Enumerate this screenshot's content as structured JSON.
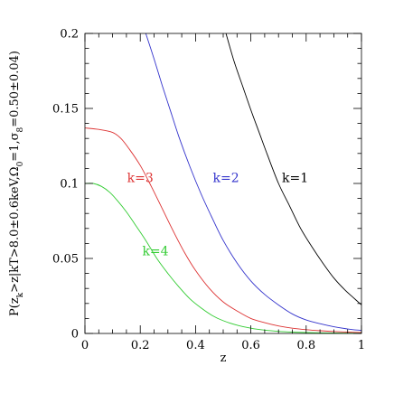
{
  "chart_data": {
    "type": "line",
    "title": "",
    "xlabel": "z",
    "ylabel": "P(z_k>z|kT>8.0±0.6keV,Ω_0=1,σ_8=0.50±0.04)",
    "ylabel_parts": {
      "p1": "P(z",
      "s1": "k",
      "p2": ">z|kT>8.0±0.6keV,Ω",
      "s2": "0",
      "p3": "=1,σ",
      "s3": "8",
      "p4": "=0.50±0.04)"
    },
    "xlim": [
      0,
      1
    ],
    "ylim": [
      0,
      0.2
    ],
    "xticks": [
      0,
      0.2,
      0.4,
      0.6,
      0.8,
      1
    ],
    "xtick_labels": [
      "0",
      "0.2",
      "0.4",
      "0.6",
      "0.8",
      "1"
    ],
    "yticks": [
      0,
      0.05,
      0.1,
      0.15,
      0.2
    ],
    "ytick_labels": [
      "0",
      "0.05",
      "0.1",
      "0.15",
      "0.2"
    ],
    "grid": false,
    "series": [
      {
        "name": "k=1",
        "color": "#000000",
        "x": [
          0.51,
          0.54,
          0.57,
          0.6,
          0.63,
          0.66,
          0.7,
          0.74,
          0.78,
          0.82,
          0.86,
          0.9,
          0.94,
          0.97,
          1.0
        ],
        "y": [
          0.2,
          0.181,
          0.165,
          0.149,
          0.134,
          0.119,
          0.1,
          0.085,
          0.07,
          0.058,
          0.047,
          0.037,
          0.029,
          0.024,
          0.019
        ]
      },
      {
        "name": "k=2",
        "color": "#3333cc",
        "x": [
          0.22,
          0.25,
          0.28,
          0.31,
          0.34,
          0.38,
          0.42,
          0.46,
          0.5,
          0.55,
          0.6,
          0.65,
          0.7,
          0.75,
          0.8,
          0.85,
          0.9,
          0.95,
          1.0
        ],
        "y": [
          0.2,
          0.183,
          0.165,
          0.148,
          0.131,
          0.111,
          0.093,
          0.077,
          0.062,
          0.047,
          0.035,
          0.026,
          0.019,
          0.013,
          0.009,
          0.0065,
          0.0045,
          0.003,
          0.002
        ]
      },
      {
        "name": "k=3",
        "color": "#dd3333",
        "x": [
          0.0,
          0.05,
          0.1,
          0.13,
          0.16,
          0.2,
          0.24,
          0.28,
          0.32,
          0.36,
          0.4,
          0.45,
          0.5,
          0.55,
          0.6,
          0.65,
          0.7,
          0.75,
          0.8,
          0.85,
          0.9,
          0.95,
          1.0
        ],
        "y": [
          0.137,
          0.136,
          0.134,
          0.13,
          0.123,
          0.112,
          0.098,
          0.083,
          0.068,
          0.054,
          0.042,
          0.03,
          0.021,
          0.015,
          0.01,
          0.0072,
          0.005,
          0.0035,
          0.0025,
          0.0018,
          0.0013,
          0.0009,
          0.0006
        ]
      },
      {
        "name": "k=4",
        "color": "#33cc33",
        "x": [
          0.0,
          0.03,
          0.06,
          0.09,
          0.12,
          0.15,
          0.18,
          0.22,
          0.26,
          0.3,
          0.34,
          0.38,
          0.42,
          0.46,
          0.5,
          0.55,
          0.6,
          0.65,
          0.7,
          0.75,
          0.8,
          0.85,
          0.9,
          0.95,
          1.0
        ],
        "y": [
          0.1,
          0.1,
          0.098,
          0.094,
          0.088,
          0.081,
          0.073,
          0.062,
          0.05,
          0.04,
          0.031,
          0.023,
          0.017,
          0.012,
          0.0085,
          0.0055,
          0.0035,
          0.0022,
          0.0014,
          0.0009,
          0.0006,
          0.0004,
          0.0003,
          0.0002,
          0.0001
        ]
      }
    ],
    "annotations": [
      {
        "text": "k=1",
        "x": 0.76,
        "y": 0.101,
        "color": "#000000"
      },
      {
        "text": "k=2",
        "x": 0.51,
        "y": 0.101,
        "color": "#3333cc"
      },
      {
        "text": "k=3",
        "x": 0.2,
        "y": 0.101,
        "color": "#dd3333"
      },
      {
        "text": "k=4",
        "x": 0.255,
        "y": 0.052,
        "color": "#33cc33"
      }
    ]
  }
}
